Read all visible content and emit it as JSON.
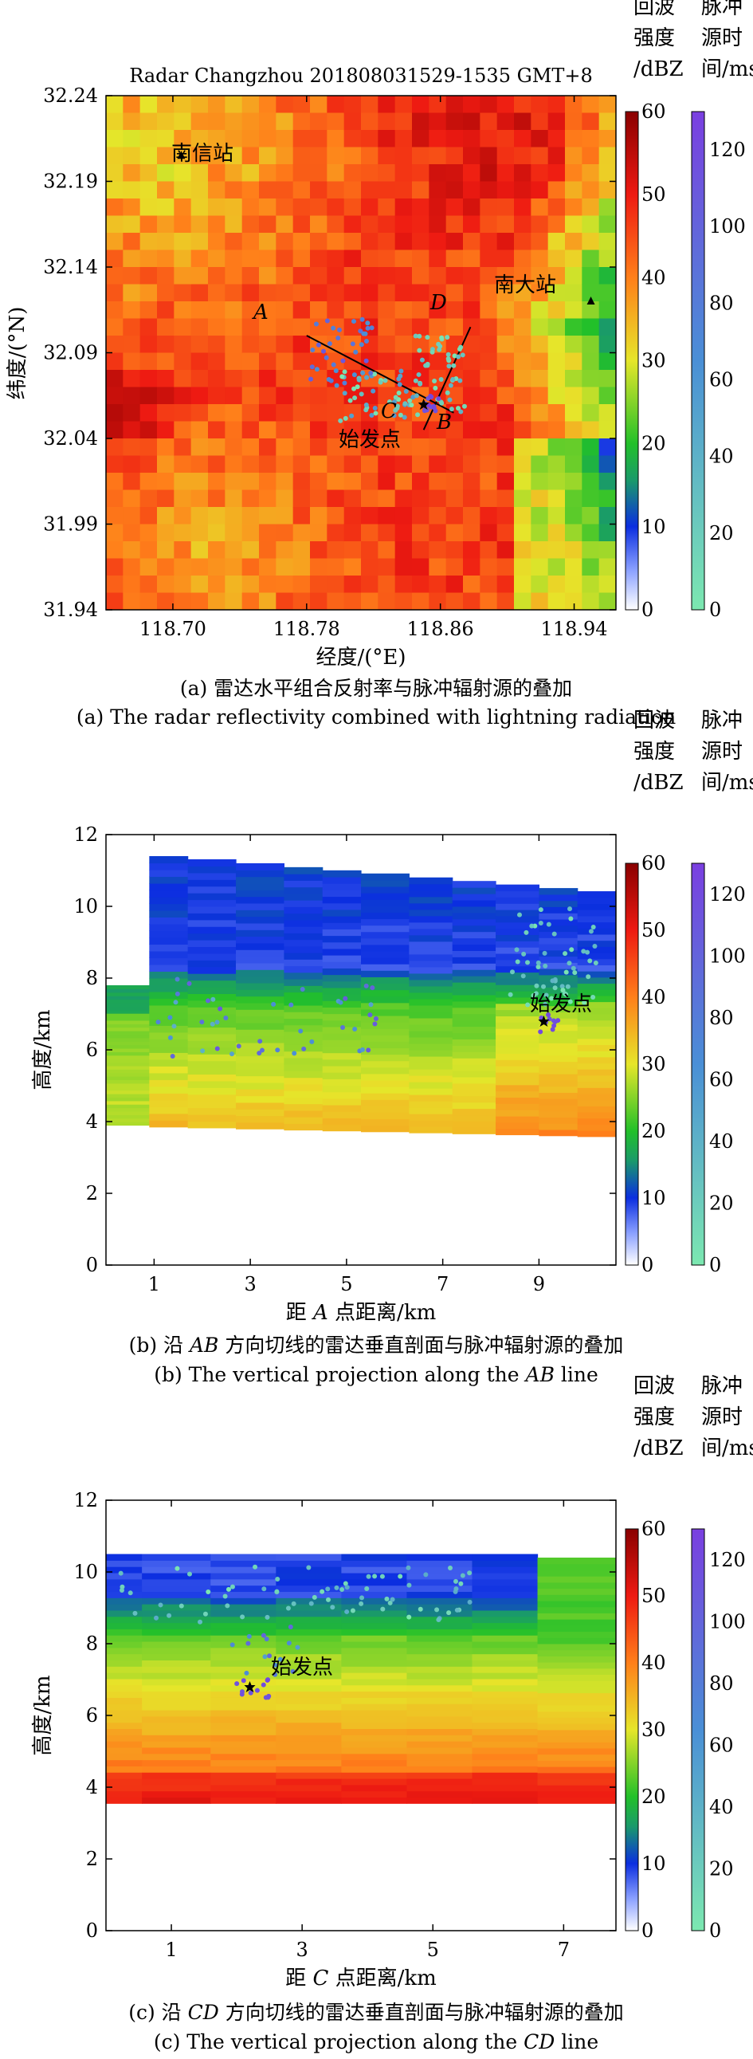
{
  "colorbar_headers": {
    "reflectivity": [
      "回波",
      "强度",
      "/dBZ"
    ],
    "pulse_time": [
      "脉冲",
      "源时",
      "间/ms"
    ]
  },
  "colorbars": {
    "reflectivity": {
      "ticks": [
        0,
        10,
        20,
        30,
        40,
        50,
        60
      ],
      "range": [
        0,
        60
      ],
      "colors": [
        "#ffffff",
        "#0b2ee0",
        "#22c02a",
        "#e6e62a",
        "#ff7f1a",
        "#ee1a12",
        "#8a0000"
      ]
    },
    "pulse_time": {
      "ticks": [
        0,
        20,
        40,
        60,
        80,
        100,
        120
      ],
      "range": [
        0,
        130
      ],
      "colors": [
        "#7ce8b0",
        "#4a8fd6",
        "#7a3fe0"
      ]
    }
  },
  "chart_data": [
    {
      "id": "panel-a",
      "type": "heatmap",
      "title": "Radar Changzhou 201808031529-1535 GMT+8",
      "xlabel": "经度/(°E)",
      "ylabel": "纬度/(°N)",
      "xlim": [
        118.66,
        118.965
      ],
      "ylim": [
        31.94,
        32.24
      ],
      "x_ticks": [
        "118.70",
        "118.78",
        "118.86",
        "118.94"
      ],
      "y_ticks": [
        "31.94",
        "31.99",
        "32.04",
        "32.09",
        "32.14",
        "32.19",
        "32.24"
      ],
      "stations": [
        {
          "name": "南信站",
          "lon": 118.705,
          "lat": 32.205
        },
        {
          "name": "南大站",
          "lon": 118.95,
          "lat": 32.12
        }
      ],
      "line_AB": {
        "A": [
          118.78,
          32.1
        ],
        "B": [
          118.868,
          32.055
        ]
      },
      "line_CD": {
        "C": [
          118.85,
          32.045
        ],
        "D": [
          118.878,
          32.105
        ]
      },
      "labels": {
        "A": "A",
        "B": "B",
        "C": "C",
        "D": "D",
        "origin": "始发点"
      },
      "origin_point": [
        118.85,
        32.06
      ],
      "caption_cn": "(a) 雷达水平组合反射率与脉冲辐射源的叠加",
      "caption_en": "(a) The radar reflectivity combined with lightning radiation"
    },
    {
      "id": "panel-b",
      "type": "heatmap",
      "xlabel_prefix": "距 ",
      "xlabel_point": "A",
      "xlabel_suffix": " 点距离/km",
      "ylabel": "高度/km",
      "xlim": [
        0,
        10.6
      ],
      "ylim": [
        0,
        12
      ],
      "x_ticks": [
        1,
        3,
        5,
        7,
        9
      ],
      "y_ticks": [
        0,
        2,
        4,
        6,
        8,
        10,
        12
      ],
      "origin_label": "始发点",
      "origin_point": [
        9.1,
        6.8
      ],
      "caption_cn_prefix": "(b) 沿 ",
      "caption_cn_em": "AB",
      "caption_cn_suffix": " 方向切线的雷达垂直剖面与脉冲辐射源的叠加",
      "caption_en_prefix": "(b) The vertical projection along the ",
      "caption_en_em": "AB",
      "caption_en_suffix": " line"
    },
    {
      "id": "panel-c",
      "type": "heatmap",
      "xlabel_prefix": "距 ",
      "xlabel_point": "C",
      "xlabel_suffix": " 点距离/km",
      "ylabel": "高度/km",
      "xlim": [
        0,
        7.8
      ],
      "ylim": [
        0,
        12
      ],
      "x_ticks": [
        1,
        3,
        5,
        7
      ],
      "y_ticks": [
        0,
        2,
        4,
        6,
        8,
        10,
        12
      ],
      "origin_label": "始发点",
      "origin_point": [
        2.2,
        6.8
      ],
      "caption_cn_prefix": "(c) 沿 ",
      "caption_cn_em": "CD",
      "caption_cn_suffix": " 方向切线的雷达垂直剖面与脉冲辐射源的叠加",
      "caption_en_prefix": "(c) The vertical projection along the ",
      "caption_en_em": "CD",
      "caption_en_suffix": " line"
    }
  ]
}
